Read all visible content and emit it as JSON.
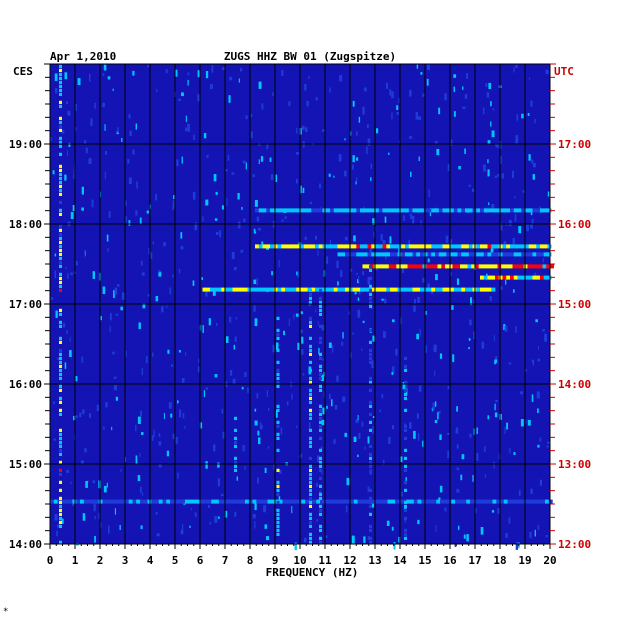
{
  "chart_data": {
    "type": "heatmap",
    "title": "ZUGS HHZ BW 01 (Zugspitze)",
    "date": "Apr 1,2010",
    "xlabel": "FREQUENCY (HZ)",
    "xlim": [
      0,
      20
    ],
    "x_ticks": [
      "0",
      "1",
      "2",
      "3",
      "4",
      "5",
      "6",
      "7",
      "8",
      "9",
      "10",
      "11",
      "12",
      "13",
      "14",
      "15",
      "16",
      "17",
      "18",
      "19",
      "20"
    ],
    "left_axis": {
      "label": "CES",
      "range_hours": [
        14,
        20
      ],
      "ticks": [
        {
          "hour": 19,
          "label": "19:00"
        },
        {
          "hour": 18,
          "label": "18:00"
        },
        {
          "hour": 17,
          "label": "17:00"
        },
        {
          "hour": 16,
          "label": "16:00"
        },
        {
          "hour": 15,
          "label": "15:00"
        },
        {
          "hour": 14,
          "label": "14:00"
        }
      ]
    },
    "right_axis": {
      "label": "UTC",
      "ticks": [
        {
          "hour": 17,
          "label": "17:00"
        },
        {
          "hour": 16,
          "label": "16:00"
        },
        {
          "hour": 15,
          "label": "15:00"
        },
        {
          "hour": 14,
          "label": "14:00"
        },
        {
          "hour": 13,
          "label": "13:00"
        },
        {
          "hour": 12,
          "label": "12:00"
        }
      ]
    },
    "colors": {
      "background": "#1414b4",
      "low": "#1e3cdc",
      "mid": "#00c8ff",
      "high": "#ffff00",
      "peak": "#ff0000",
      "grid": "#000000",
      "utc_text": "#cc0000"
    },
    "features": [
      {
        "kind": "line",
        "hour": 17.72,
        "freq_from": 8.2,
        "freq_to": 20,
        "intensity": 0.85
      },
      {
        "kind": "line",
        "hour": 17.62,
        "freq_from": 11.5,
        "freq_to": 20,
        "intensity": 0.55
      },
      {
        "kind": "line",
        "hour": 17.47,
        "freq_from": 12.5,
        "freq_to": 20,
        "intensity": 0.95
      },
      {
        "kind": "line",
        "hour": 17.33,
        "freq_from": 17.2,
        "freq_to": 20,
        "intensity": 0.85
      },
      {
        "kind": "line",
        "hour": 17.18,
        "freq_from": 6.1,
        "freq_to": 17.8,
        "intensity": 0.8
      },
      {
        "kind": "line",
        "hour": 18.17,
        "freq_from": 8.2,
        "freq_to": 20,
        "intensity": 0.6
      },
      {
        "kind": "line",
        "hour": 14.53,
        "freq_from": 0,
        "freq_to": 20,
        "intensity": 0.5
      },
      {
        "kind": "column",
        "freq": 9.1,
        "hour_from": 14.0,
        "hour_to": 17.2,
        "intensity": 0.7
      },
      {
        "kind": "column",
        "freq": 10.4,
        "hour_from": 14.0,
        "hour_to": 17.2,
        "intensity": 0.75
      },
      {
        "kind": "column",
        "freq": 10.8,
        "hour_from": 14.0,
        "hour_to": 17.2,
        "intensity": 0.65
      },
      {
        "kind": "column",
        "freq": 12.8,
        "hour_from": 14.0,
        "hour_to": 17.5,
        "intensity": 0.55
      },
      {
        "kind": "column",
        "freq": 14.2,
        "hour_from": 14.0,
        "hour_to": 16.4,
        "intensity": 0.6
      },
      {
        "kind": "column",
        "freq": 7.4,
        "hour_from": 14.9,
        "hour_to": 15.6,
        "intensity": 0.65
      },
      {
        "kind": "column",
        "freq": 0.4,
        "hour_from": 14.0,
        "hour_to": 20.0,
        "intensity": 0.85
      }
    ]
  },
  "footnote": "*"
}
